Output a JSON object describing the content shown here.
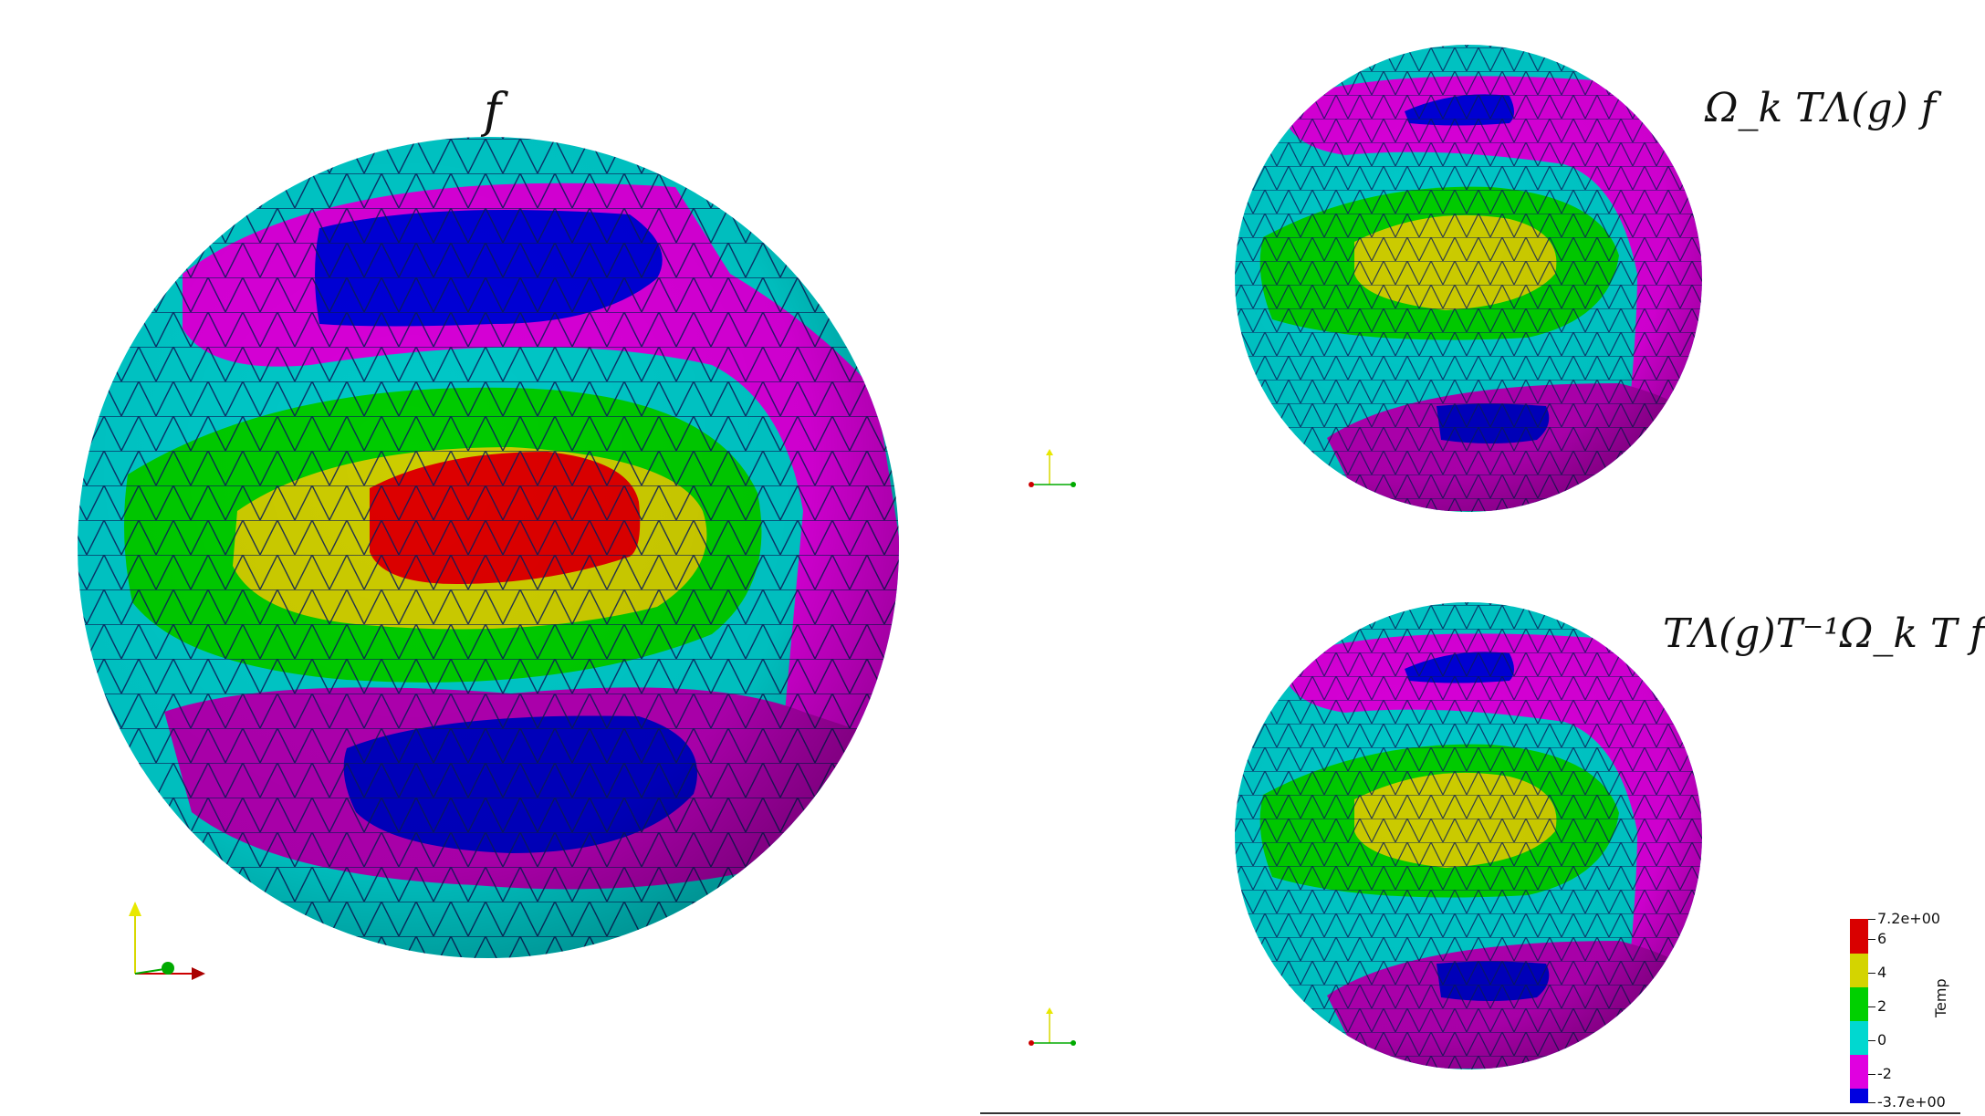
{
  "views": {
    "main": {
      "label": "f"
    },
    "top_right": {
      "label": "Ω_k TΛ(g) f"
    },
    "bottom_right": {
      "label": "TΛ(g)T⁻¹Ω_k T f"
    }
  },
  "colorbar": {
    "title": "Temp",
    "max_label": "7.2e+00",
    "min_label": "-3.7e+00",
    "tick_labels": [
      "6",
      "4",
      "2",
      "0",
      "-2"
    ],
    "colors": {
      "red": "#d90000",
      "yellow": "#d4d400",
      "green": "#00d000",
      "cyan": "#00d8d0",
      "magenta": "#e000e0",
      "blue": "#0000e0"
    }
  },
  "orientation_axes": {
    "x_color": "#cc0000",
    "y_color": "#e0e000",
    "z_color": "#00aa00"
  },
  "mesh": {
    "edge_color": "#0a1a5a"
  }
}
